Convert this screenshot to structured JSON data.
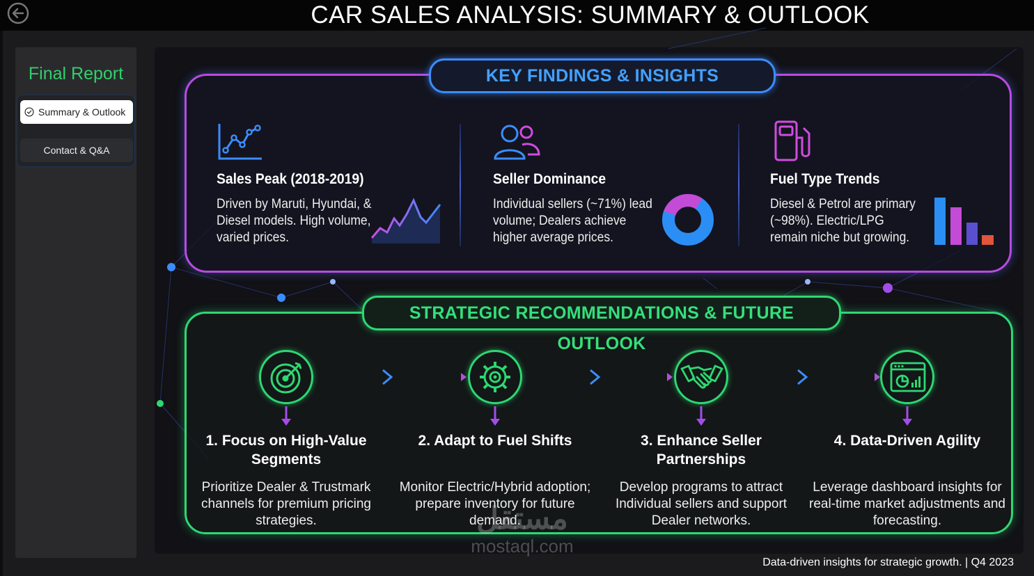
{
  "page": {
    "title": "CAR SALES ANALYSIS: SUMMARY & OUTLOOK"
  },
  "sidebar": {
    "title": "Final Report",
    "items": [
      {
        "label": "Summary & Outlook",
        "active": true
      },
      {
        "label": "Contact & Q&A",
        "active": false
      }
    ]
  },
  "findings": {
    "heading": "KEY FINDINGS & INSIGHTS",
    "items": [
      {
        "title": "Sales Peak (2018-2019)",
        "body": "Driven by Maruti, Hyundai, & Diesel models. High volume, varied prices.",
        "icon": "line-chart-icon"
      },
      {
        "title": "Seller Dominance",
        "body": "Individual sellers (~71%) lead volume; Dealers achieve higher average prices.",
        "icon": "users-icon"
      },
      {
        "title": "Fuel Type Trends",
        "body": "Diesel & Petrol are primary (~98%). Electric/LPG remain niche but growing.",
        "icon": "fuel-pump-icon"
      }
    ]
  },
  "recommendations": {
    "heading": "STRATEGIC RECOMMENDATIONS & FUTURE OUTLOOK",
    "steps": [
      {
        "title": "1. Focus on High-Value Segments",
        "body": "Prioritize Dealer & Trustmark channels for premium pricing strategies.",
        "icon": "target-icon"
      },
      {
        "title": "2. Adapt to Fuel Shifts",
        "body": "Monitor Electric/Hybrid adoption; prepare inventory for future demand.",
        "icon": "gear-icon"
      },
      {
        "title": "3. Enhance Seller Partnerships",
        "body": "Develop programs to attract Individual sellers and support Dealer networks.",
        "icon": "handshake-icon"
      },
      {
        "title": "4. Data-Driven Agility",
        "body": "Leverage dashboard insights for real-time market adjustments and forecasting.",
        "icon": "dashboard-icon"
      }
    ]
  },
  "footer": {
    "text": "Data-driven insights for strategic growth.  | Q4 2023"
  },
  "watermark": {
    "arabic": "مستقل",
    "latin": "mostaql.com"
  },
  "colors": {
    "accent_green": "#2ed873",
    "accent_blue": "#3b8dff",
    "accent_purple": "#b94be0"
  }
}
